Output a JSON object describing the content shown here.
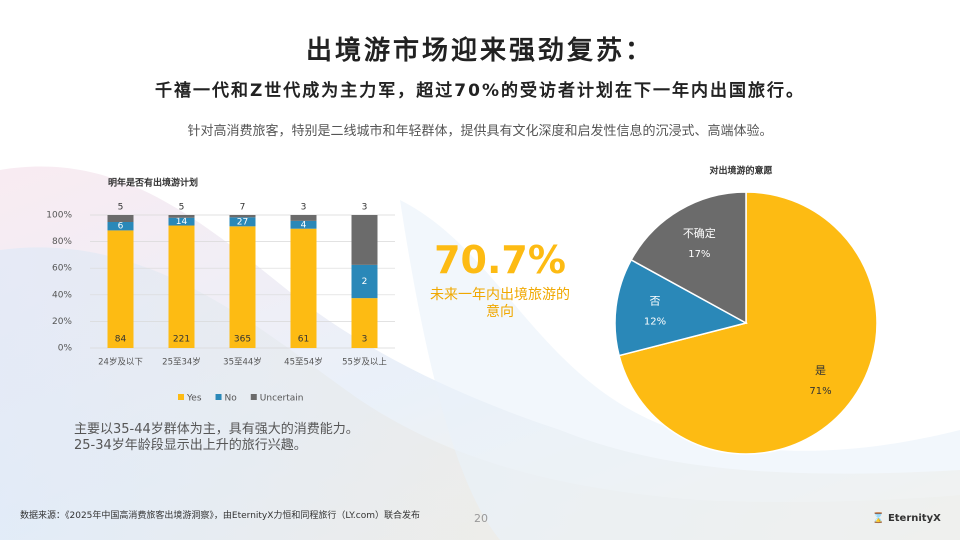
{
  "header": {
    "title": "出境游市场迎来强劲复苏：",
    "subtitle": "千禧一代和Z世代成为主力军，超过70%的受访者计划在下一年内出国旅行。",
    "description": "针对高消费旅客，特别是二线城市和年轻群体，提供具有文化深度和启发性信息的沉浸式、高端体验。"
  },
  "chart_data": [
    {
      "type": "bar",
      "stacking": "percent",
      "title": "明年是否有出境游计划",
      "categories": [
        "24岁及以下",
        "25至34岁",
        "35至44岁",
        "45至54岁",
        "55岁及以上"
      ],
      "series": [
        {
          "name": "Yes",
          "color": "#fdbb13",
          "values": [
            84,
            221,
            365,
            61,
            3
          ]
        },
        {
          "name": "No",
          "color": "#2a88b8",
          "values": [
            6,
            14,
            27,
            4,
            2
          ]
        },
        {
          "name": "Uncertain",
          "color": "#6b6b6b",
          "values": [
            5,
            5,
            7,
            3,
            3
          ]
        }
      ],
      "ylim": [
        0,
        100
      ],
      "yticks": [
        {
          "value": 0,
          "label": "0%"
        },
        {
          "value": 20,
          "label": "20%"
        },
        {
          "value": 40,
          "label": "40%"
        },
        {
          "value": 60,
          "label": "60%"
        },
        {
          "value": 80,
          "label": "80%"
        },
        {
          "value": 100,
          "label": "100%"
        }
      ],
      "grid": true,
      "legend": "bottom"
    },
    {
      "type": "pie",
      "title": "对出境游的意愿",
      "categories": [
        "是",
        "否",
        "不确定"
      ],
      "values": [
        71,
        12,
        17
      ],
      "value_labels": [
        "71%",
        "12%",
        "17%"
      ],
      "colors": [
        "#fdbb13",
        "#2a88b8",
        "#6b6b6b"
      ],
      "label_colors": [
        "#333333",
        "#ffffff",
        "#ffffff"
      ]
    }
  ],
  "callout": {
    "value": "70.7%",
    "label": "未来一年内出境旅游的意向"
  },
  "notes": [
    "主要以35-44岁群体为主，具有强大的消费能力。",
    "25-34岁年龄段显示出上升的旅行兴趣。"
  ],
  "footer": {
    "source": "数据来源：《2025年中国高消费旅客出境游洞察》，由EternityX力恒和同程旅行（LY.com）联合发布",
    "page": "20",
    "logo": "EternityX"
  }
}
